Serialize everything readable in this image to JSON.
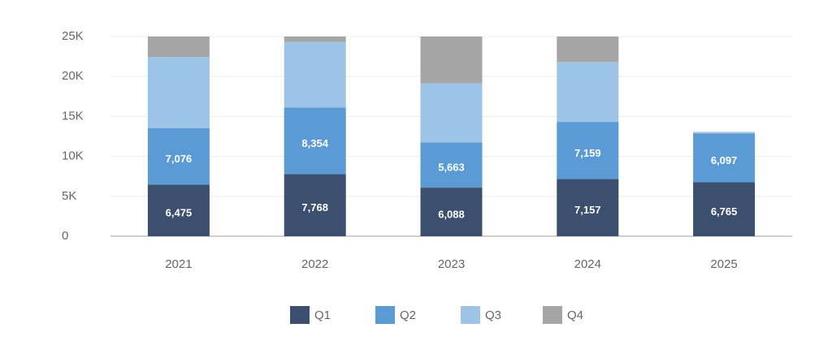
{
  "chart_data": {
    "type": "stacked-bar",
    "categories": [
      "2021",
      "2022",
      "2023",
      "2024",
      "2025"
    ],
    "series": [
      {
        "name": "Q1",
        "color": "#3d4f6e",
        "values": [
          6475,
          7768,
          6088,
          7157,
          6765
        ],
        "value_labels": [
          "6,475",
          "7,768",
          "6,088",
          "7,157",
          "6,765"
        ]
      },
      {
        "name": "Q2",
        "color": "#5b9bd5",
        "values": [
          7076,
          8354,
          5663,
          7159,
          6097
        ],
        "value_labels": [
          "7,076",
          "8,354",
          "5,663",
          "7,159",
          "6,097"
        ]
      },
      {
        "name": "Q3",
        "color": "#9dc3e6",
        "values": [
          8900,
          8200,
          7400,
          7500,
          200
        ]
      },
      {
        "name": "Q4",
        "color": "#a5a5a5",
        "values": [
          2600,
          1000,
          6000,
          3400,
          0
        ]
      }
    ],
    "ylim": [
      0,
      25000
    ],
    "yticks": [
      0,
      {
        "value": 5000,
        "label": "5K"
      },
      {
        "value": 10000,
        "label": "10K"
      },
      {
        "value": 15000,
        "label": "15K"
      },
      {
        "value": 20000,
        "label": "20K"
      },
      {
        "value": 25000,
        "label": "25K"
      }
    ],
    "grid": true
  }
}
